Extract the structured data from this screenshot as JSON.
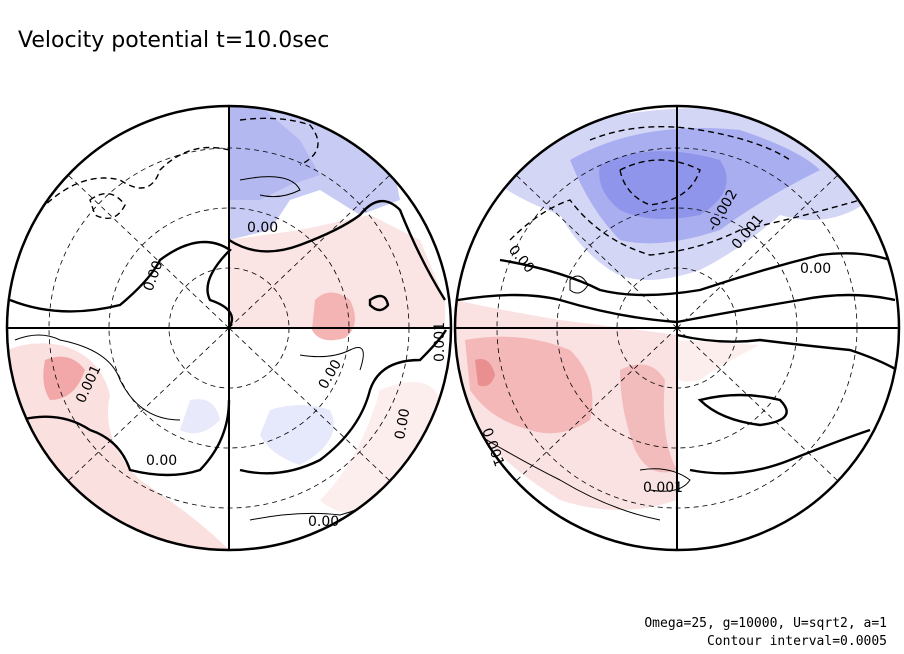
{
  "title": "Velocity potential t=10.0sec",
  "left_panel": {
    "contour_labels": [
      "0.00",
      "0.00",
      "0.001",
      "0.00",
      "0.00",
      "0.00",
      "0.001",
      "0.00"
    ]
  },
  "right_panel": {
    "contour_labels": [
      "-0.002",
      "0.001",
      "0.00",
      "0.00",
      "0.001",
      "0.001"
    ]
  },
  "footer": [
    "Omega=25, g=10000, U=sqrt2, a=1",
    "Contour interval=0.0005"
  ]
}
